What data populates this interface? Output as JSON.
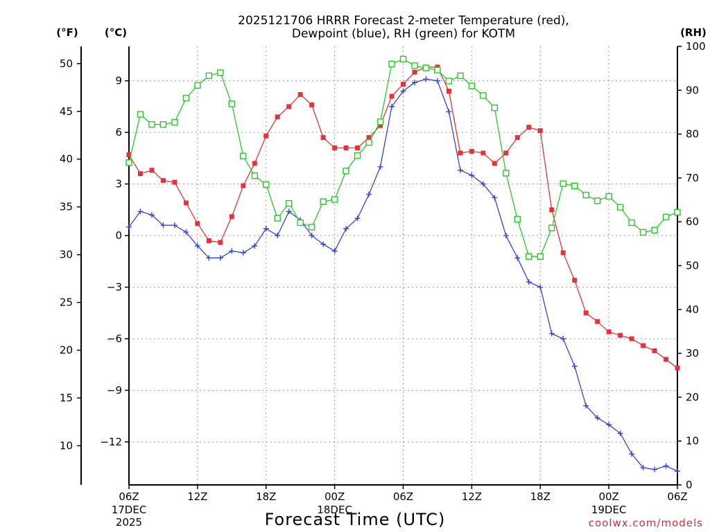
{
  "chart_data": {
    "type": "line",
    "title_line1": "2025121706 HRRR Forecast 2-meter Temperature (red),",
    "title_line2": "Dewpoint (blue), RH (green) for KOTM",
    "xlabel": "Forecast Time (UTC)",
    "credit": "coolwx.com/models",
    "units": {
      "fahrenheit": "(°F)",
      "celsius": "(°C)",
      "rh": "(RH)"
    },
    "x_hours": {
      "start": 0,
      "end": 48,
      "step": 1
    },
    "x_ticks": [
      {
        "hour": 0,
        "label": "06Z",
        "sub1": "17DEC",
        "sub2": "2025"
      },
      {
        "hour": 6,
        "label": "12Z"
      },
      {
        "hour": 12,
        "label": "18Z"
      },
      {
        "hour": 18,
        "label": "00Z",
        "sub1": "18DEC"
      },
      {
        "hour": 24,
        "label": "06Z"
      },
      {
        "hour": 30,
        "label": "12Z"
      },
      {
        "hour": 36,
        "label": "18Z"
      },
      {
        "hour": 42,
        "label": "00Z",
        "sub1": "19DEC"
      },
      {
        "hour": 48,
        "label": "06Z"
      }
    ],
    "celsius_axis": {
      "ylim": [
        -14.5,
        11
      ],
      "ticks": [
        9,
        6,
        3,
        0,
        -3,
        -6,
        -9,
        -12
      ],
      "labels": [
        "9",
        "6",
        "3",
        "0",
        "−3",
        "−6",
        "−9",
        "−12"
      ]
    },
    "fahrenheit_ticks": [
      50,
      45,
      40,
      35,
      30,
      25,
      20,
      15,
      10
    ],
    "rh_axis": {
      "ylim": [
        0,
        100
      ],
      "ticks": [
        0,
        10,
        20,
        30,
        40,
        50,
        60,
        70,
        80,
        90,
        100
      ]
    },
    "series": [
      {
        "name": "Temperature",
        "unit": "C",
        "color": "#e8313a",
        "marker": "filled-square",
        "values": [
          4.7,
          3.6,
          3.8,
          3.2,
          3.1,
          1.9,
          0.7,
          -0.3,
          -0.4,
          1.1,
          2.9,
          4.2,
          5.8,
          6.9,
          7.5,
          8.2,
          7.6,
          5.7,
          5.1,
          5.1,
          5.1,
          5.7,
          6.4,
          8.1,
          8.8,
          9.5,
          9.8,
          9.8,
          8.4,
          4.8,
          4.9,
          4.8,
          4.2,
          4.8,
          5.7,
          6.3,
          6.1,
          1.5,
          -1.0,
          -2.6,
          -4.5,
          -5.0,
          -5.6,
          -5.8,
          -6.0,
          -6.4,
          -6.7,
          -7.2,
          -7.7
        ]
      },
      {
        "name": "Dewpoint",
        "unit": "C",
        "color": "#3340e0",
        "marker": "plus",
        "values": [
          0.5,
          1.4,
          1.2,
          0.6,
          0.6,
          0.2,
          -0.6,
          -1.3,
          -1.3,
          -0.9,
          -1.0,
          -0.6,
          0.4,
          0.0,
          1.4,
          0.9,
          0.0,
          -0.5,
          -0.9,
          0.4,
          1.0,
          2.4,
          4.0,
          7.5,
          8.4,
          8.9,
          9.1,
          9.0,
          7.2,
          3.8,
          3.5,
          3.0,
          2.2,
          0.0,
          -1.3,
          -2.7,
          -3.0,
          -5.7,
          -6.0,
          -7.6,
          -9.9,
          -10.6,
          -11.0,
          -11.5,
          -12.7,
          -13.5,
          -13.6,
          -13.4,
          -13.7
        ]
      },
      {
        "name": "RH",
        "unit": "%",
        "color": "#22cc22",
        "marker": "open-square",
        "values": [
          73.5,
          84.5,
          82.2,
          82.2,
          82.7,
          88.2,
          91.1,
          93.3,
          94.0,
          86.9,
          75.0,
          70.5,
          68.5,
          60.8,
          64.2,
          59.8,
          58.8,
          64.6,
          65.1,
          71.6,
          75.1,
          78.1,
          82.8,
          96.0,
          97.1,
          95.6,
          95.1,
          94.6,
          92.1,
          93.3,
          91.0,
          88.8,
          86.0,
          71.1,
          60.6,
          52.1,
          52.1,
          58.6,
          68.7,
          68.2,
          66.1,
          64.8,
          65.8,
          63.3,
          59.8,
          57.6,
          58.1,
          61.1,
          62.2
        ]
      }
    ]
  }
}
